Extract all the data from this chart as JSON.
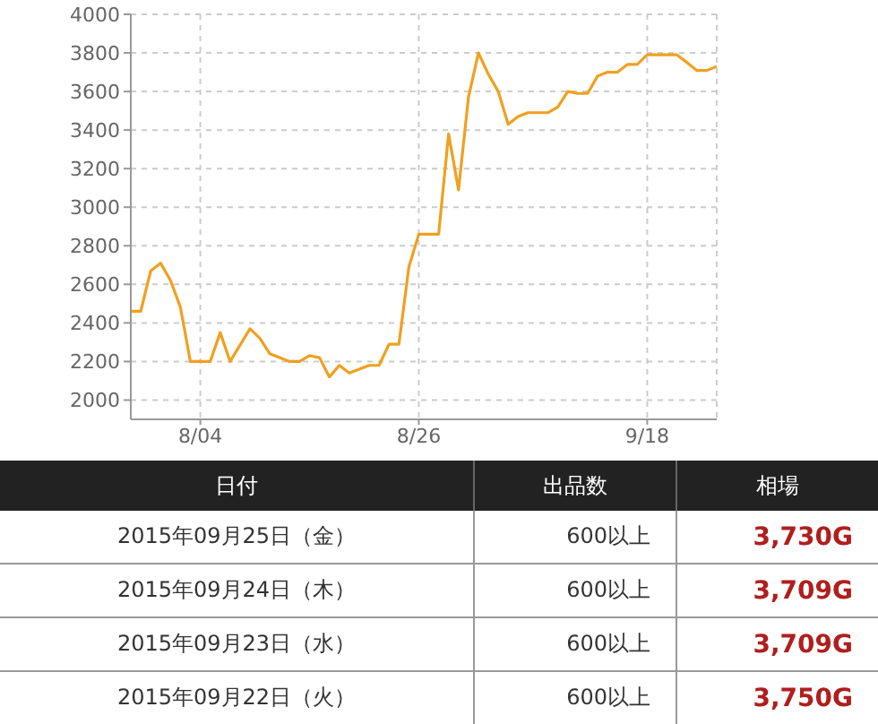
{
  "chart_data": [
    {
      "type": "line",
      "x": [
        "2015-07-28",
        "2015-07-29",
        "2015-07-30",
        "2015-07-31",
        "2015-08-01",
        "2015-08-02",
        "2015-08-03",
        "2015-08-05",
        "2015-08-06",
        "2015-08-07",
        "2015-08-09",
        "2015-08-10",
        "2015-08-11",
        "2015-08-13",
        "2015-08-14",
        "2015-08-15",
        "2015-08-16",
        "2015-08-17",
        "2015-08-18",
        "2015-08-19",
        "2015-08-21",
        "2015-08-22",
        "2015-08-23",
        "2015-08-24",
        "2015-08-25",
        "2015-08-26",
        "2015-08-28",
        "2015-08-29",
        "2015-08-30",
        "2015-08-31",
        "2015-09-01",
        "2015-09-02",
        "2015-09-03",
        "2015-09-04",
        "2015-09-05",
        "2015-09-06",
        "2015-09-08",
        "2015-09-09",
        "2015-09-10",
        "2015-09-11",
        "2015-09-12",
        "2015-09-13",
        "2015-09-14",
        "2015-09-15",
        "2015-09-16",
        "2015-09-17",
        "2015-09-18",
        "2015-09-21",
        "2015-09-22",
        "2015-09-23",
        "2015-09-24",
        "2015-09-25"
      ],
      "series": [
        {
          "color": "#f0a020",
          "values": [
            2460,
            2460,
            2670,
            2710,
            2620,
            2480,
            2200,
            2200,
            2350,
            2200,
            2370,
            2320,
            2240,
            2200,
            2200,
            2230,
            2220,
            2120,
            2180,
            2140,
            2180,
            2180,
            2290,
            2290,
            2690,
            2860,
            2860,
            3380,
            3090,
            3570,
            3800,
            3690,
            3600,
            3430,
            3470,
            3490,
            3490,
            3520,
            3600,
            3590,
            3590,
            3680,
            3700,
            3700,
            3740,
            3740,
            3790,
            3790,
            3750,
            3709,
            3709,
            3730
          ]
        }
      ],
      "xlim": [
        "2015-07-28",
        "2015-09-25"
      ],
      "xticks": [
        {
          "value": "2015-08-04",
          "label": "8/04"
        },
        {
          "value": "2015-08-26",
          "label": "8/26"
        },
        {
          "value": "2015-09-18",
          "label": "9/18"
        }
      ],
      "ylim": [
        1900,
        4000
      ],
      "yticks": [
        2000,
        2200,
        2400,
        2600,
        2800,
        3000,
        3200,
        3400,
        3600,
        3800,
        4000
      ],
      "grid": true,
      "marker": "none",
      "line_style": "solid",
      "legend": false
    },
    {
      "type": "other",
      "categories": [
        "日付",
        "出品数",
        "相場"
      ],
      "y_categories": [
        "2015年09月25日（金）",
        "2015年09月24日（木）",
        "2015年09月23日（水）",
        "2015年09月22日（火）"
      ],
      "cell_labels": [
        [
          "600以上",
          "3,730G"
        ],
        [
          "600以上",
          "3,709G"
        ],
        [
          "600以上",
          "3,709G"
        ],
        [
          "600以上",
          "3,750G"
        ]
      ]
    }
  ]
}
